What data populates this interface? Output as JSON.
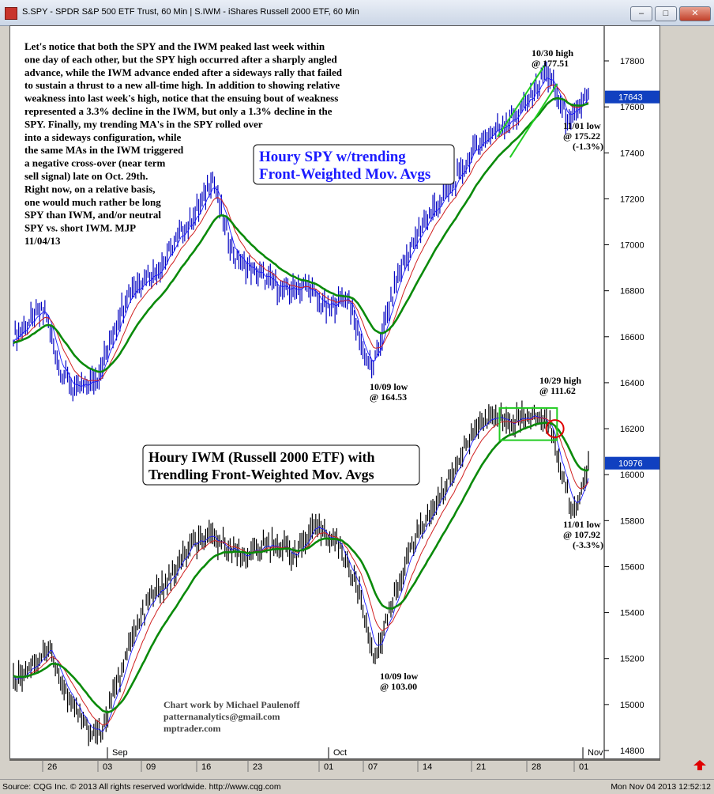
{
  "window": {
    "title": "S.SPY - SPDR S&P 500 ETF Trust, 60 Min    |    S.IWM - iShares Russell 2000 ETF, 60 Min",
    "buttons": [
      "–",
      "□",
      "✕"
    ]
  },
  "status": {
    "left": "Source: CQG Inc. © 2013 All rights reserved worldwide. http://www.cqg.com",
    "right": "Mon Nov 04 2013 12:52:12"
  },
  "chart_data": {
    "type": "candlestick",
    "y_axis": {
      "ticks": [
        "17800",
        "17600",
        "17400",
        "17200",
        "17000",
        "16800",
        "16600",
        "16400",
        "16200",
        "16000",
        "15800",
        "15600",
        "15400",
        "15200",
        "15000",
        "14800"
      ],
      "range": [
        14750,
        18050
      ]
    },
    "x_axis": {
      "month_labels": [
        "Sep",
        "Oct",
        "Nov"
      ],
      "day_labels": [
        "26",
        "03",
        "09",
        "16",
        "23",
        "01",
        "07",
        "14",
        "21",
        "28",
        "01"
      ]
    },
    "commentary": [
      "Let's notice that both the SPY and the IWM peaked last week within",
      "one day of each other, but the SPY high occurred after a sharply angled",
      "advance, while the IWM advance ended after a sideways rally that failed",
      "to sustain a thrust to a new all-time high. In addition to showing relative",
      "weakness into last week's high, notice that the ensuing bout of weakness",
      "represented a 3.3% decline in the IWM, but only a 1.3% decline in the",
      "SPY.  Finally, my trending MA's in the SPY rolled over",
      "into a sideways configuration, while",
      "the same MAs in the IWM triggered",
      "a negative cross-over (near term",
      "sell signal) late on Oct. 29th.",
      "Right now, on a relative basis,",
      "one would much rather be long",
      "SPY than IWM, and/or neutral",
      "SPY vs. short IWM.  MJP",
      "11/04/13"
    ],
    "series": [
      {
        "name": "SPY",
        "label": [
          "Houry SPY w/trending",
          "Front-Weighted Mov. Avgs"
        ],
        "last_value": "17643",
        "anchors": [
          {
            "d": 0,
            "v": 16600
          },
          {
            "d": 2,
            "v": 16680
          },
          {
            "d": 3,
            "v": 16720
          },
          {
            "d": 4.5,
            "v": 16450
          },
          {
            "d": 6,
            "v": 16360
          },
          {
            "d": 8,
            "v": 16420
          },
          {
            "d": 11,
            "v": 16800
          },
          {
            "d": 14,
            "v": 16900
          },
          {
            "d": 16,
            "v": 17050
          },
          {
            "d": 18,
            "v": 17170
          },
          {
            "d": 19,
            "v": 17300
          },
          {
            "d": 21,
            "v": 16950
          },
          {
            "d": 23,
            "v": 16880
          },
          {
            "d": 26,
            "v": 16800
          },
          {
            "d": 28,
            "v": 16820
          },
          {
            "d": 30,
            "v": 16720
          },
          {
            "d": 32,
            "v": 16780
          },
          {
            "d": 33.5,
            "v": 16520
          },
          {
            "d": 34.3,
            "v": 16453
          },
          {
            "d": 37,
            "v": 16900
          },
          {
            "d": 40,
            "v": 17150
          },
          {
            "d": 42,
            "v": 17250
          },
          {
            "d": 44,
            "v": 17420
          },
          {
            "d": 46,
            "v": 17500
          },
          {
            "d": 48,
            "v": 17560
          },
          {
            "d": 50,
            "v": 17680
          },
          {
            "d": 51,
            "v": 17751
          },
          {
            "d": 52,
            "v": 17650
          },
          {
            "d": 53.2,
            "v": 17522
          },
          {
            "d": 54,
            "v": 17600
          },
          {
            "d": 55,
            "v": 17643
          }
        ],
        "annotations": [
          {
            "text": [
              "10/30 high",
              "@ 177.51"
            ]
          },
          {
            "text": [
              "11/01 low",
              "@ 175.22",
              "(-1.3%)"
            ]
          },
          {
            "text": [
              "10/09 low",
              "@ 164.53"
            ]
          }
        ],
        "line_colors": {
          "fast": "#1a1aff",
          "mid": "#d02020",
          "slow": "#0a8a0a",
          "price": "#0000c0"
        }
      },
      {
        "name": "IWM",
        "label": [
          "Houry IWM (Russell 2000 ETF) with",
          "Trendling Front-Weighted Mov. Avgs"
        ],
        "last_value": "10976",
        "anchors": [
          {
            "d": 0,
            "v": 15100
          },
          {
            "d": 2,
            "v": 15180
          },
          {
            "d": 3.5,
            "v": 15250
          },
          {
            "d": 5,
            "v": 15050
          },
          {
            "d": 7,
            "v": 14900
          },
          {
            "d": 8.5,
            "v": 14880
          },
          {
            "d": 11,
            "v": 15250
          },
          {
            "d": 13,
            "v": 15450
          },
          {
            "d": 15,
            "v": 15550
          },
          {
            "d": 17,
            "v": 15700
          },
          {
            "d": 19,
            "v": 15720
          },
          {
            "d": 22,
            "v": 15650
          },
          {
            "d": 25,
            "v": 15700
          },
          {
            "d": 27,
            "v": 15650
          },
          {
            "d": 29,
            "v": 15780
          },
          {
            "d": 31,
            "v": 15700
          },
          {
            "d": 33,
            "v": 15500
          },
          {
            "d": 34.5,
            "v": 15200
          },
          {
            "d": 36,
            "v": 15400
          },
          {
            "d": 38,
            "v": 15680
          },
          {
            "d": 40,
            "v": 15850
          },
          {
            "d": 42,
            "v": 16000
          },
          {
            "d": 44,
            "v": 16200
          },
          {
            "d": 46,
            "v": 16250
          },
          {
            "d": 48,
            "v": 16230
          },
          {
            "d": 50,
            "v": 16260
          },
          {
            "d": 51.5,
            "v": 16200
          },
          {
            "d": 52.5,
            "v": 16000
          },
          {
            "d": 53.5,
            "v": 15830
          },
          {
            "d": 54.5,
            "v": 15960
          },
          {
            "d": 55,
            "v": 16050
          }
        ],
        "annotations": [
          {
            "text": [
              "10/29 high",
              "@ 111.62"
            ]
          },
          {
            "text": [
              "11/01 low",
              "@ 107.92",
              "(-3.3%)"
            ]
          },
          {
            "text": [
              "10/09 low",
              "@ 103.00"
            ]
          }
        ],
        "line_colors": {
          "fast": "#1a1aff",
          "mid": "#d02020",
          "slow": "#0a8a0a",
          "price": "#000000"
        }
      }
    ],
    "credit": [
      "Chart work by Michael Paulenoff",
      "patternanalytics@gmail.com",
      "mptrader.com"
    ],
    "colors": {
      "arrow_spy": "#1a1aff",
      "arrow_iwm": "#000000",
      "channel": "#22cc22",
      "highlight_circle": "#e00000",
      "nav_arrow": "#e00000"
    }
  }
}
